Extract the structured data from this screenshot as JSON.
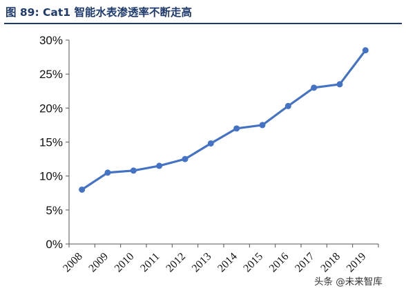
{
  "title": "图 89: Cat1 智能水表渗透率不断走高",
  "watermark": "头条 @未来智库",
  "colors": {
    "line": "#4472C4",
    "title": "#1f3a6d",
    "axis": "#555555"
  },
  "chart_data": {
    "type": "line",
    "title": "图 89: Cat1 智能水表渗透率不断走高",
    "xlabel": "",
    "ylabel": "",
    "categories": [
      "2008",
      "2009",
      "2010",
      "2011",
      "2012",
      "2013",
      "2014",
      "2015",
      "2016",
      "2017",
      "2018",
      "2019"
    ],
    "series": [
      {
        "values": [
          8.0,
          10.5,
          10.8,
          11.5,
          12.5,
          14.8,
          17.0,
          17.5,
          20.3,
          23.0,
          23.5,
          28.5
        ]
      }
    ],
    "ylim": [
      0,
      30
    ],
    "yticks": [
      "0%",
      "5%",
      "10%",
      "15%",
      "20%",
      "25%",
      "30%"
    ],
    "grid": false,
    "legend": "none"
  }
}
